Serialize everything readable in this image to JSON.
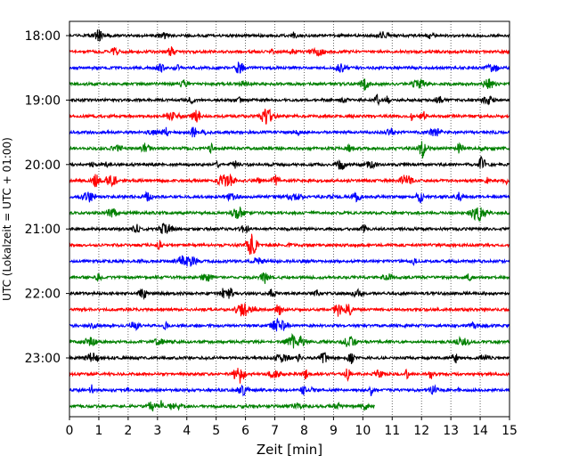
{
  "chart_data": {
    "type": "line",
    "title": "",
    "xlabel": "Zeit  [min]",
    "ylabel": "UTC (Lokalzeit = UTC + 01:00)",
    "xlim": [
      0,
      15
    ],
    "x_ticks": [
      0,
      1,
      2,
      3,
      4,
      5,
      6,
      7,
      8,
      9,
      10,
      11,
      12,
      13,
      14,
      15
    ],
    "y_tick_labels": [
      "18:00",
      "19:00",
      "20:00",
      "21:00",
      "22:00",
      "23:00"
    ],
    "grid": "vertical dotted",
    "trace_interval_min": 15,
    "color_cycle": [
      "#000000",
      "#ff0000",
      "#0000ff",
      "#008000"
    ],
    "series": [
      {
        "start": "18:00",
        "end_min": 15
      },
      {
        "start": "18:15",
        "end_min": 15
      },
      {
        "start": "18:30",
        "end_min": 15
      },
      {
        "start": "18:45",
        "end_min": 15
      },
      {
        "start": "19:00",
        "end_min": 15
      },
      {
        "start": "19:15",
        "end_min": 15
      },
      {
        "start": "19:30",
        "end_min": 15
      },
      {
        "start": "19:45",
        "end_min": 15
      },
      {
        "start": "20:00",
        "end_min": 15
      },
      {
        "start": "20:15",
        "end_min": 15
      },
      {
        "start": "20:30",
        "end_min": 15
      },
      {
        "start": "20:45",
        "end_min": 15
      },
      {
        "start": "21:00",
        "end_min": 15
      },
      {
        "start": "21:15",
        "end_min": 15
      },
      {
        "start": "21:30",
        "end_min": 15
      },
      {
        "start": "21:45",
        "end_min": 15
      },
      {
        "start": "22:00",
        "end_min": 15
      },
      {
        "start": "22:15",
        "end_min": 15
      },
      {
        "start": "22:30",
        "end_min": 15
      },
      {
        "start": "22:45",
        "end_min": 15
      },
      {
        "start": "23:00",
        "end_min": 15
      },
      {
        "start": "23:15",
        "end_min": 15
      },
      {
        "start": "23:30",
        "end_min": 15
      },
      {
        "start": "23:45",
        "end_min": 10.4
      }
    ]
  }
}
